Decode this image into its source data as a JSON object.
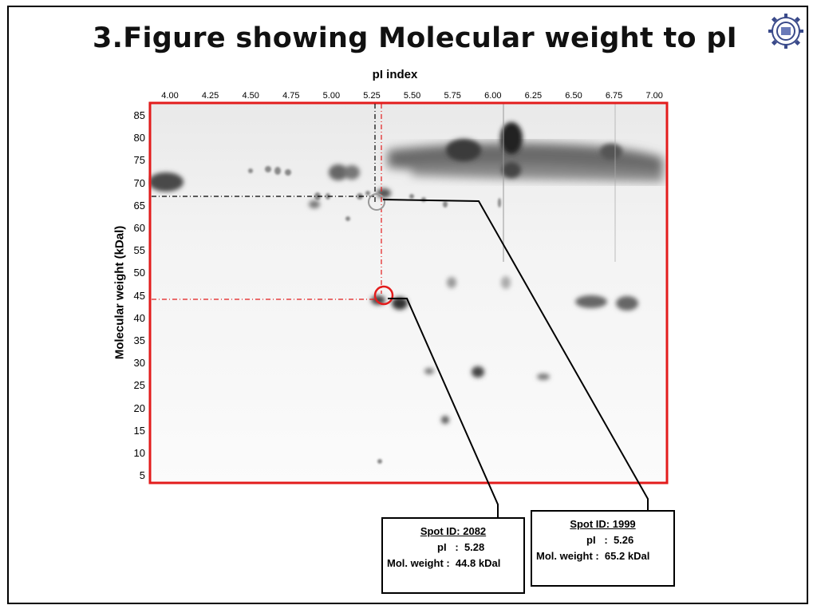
{
  "title": "3.Figure showing Molecular weight to pI",
  "x_axis": {
    "label": "pI index",
    "ticks": [
      "4.00",
      "4.25",
      "4.50",
      "4.75",
      "5.00",
      "5.25",
      "5.50",
      "5.75",
      "6.00",
      "6.25",
      "6.50",
      "6.75",
      "7.00"
    ]
  },
  "y_axis": {
    "label": "Molecular weight (kDal)",
    "ticks": [
      "85",
      "80",
      "75",
      "70",
      "65",
      "60",
      "55",
      "50",
      "45",
      "40",
      "35",
      "30",
      "25",
      "20",
      "15",
      "10",
      "5"
    ]
  },
  "highlighted_spots": [
    {
      "heading": "Spot ID: 2082",
      "pi_line": "pI   :  5.28",
      "mw_line": "Mol. weight :  44.8 kDal",
      "pi": 5.28,
      "mw": 44.8,
      "marker_color": "#e31c1c"
    },
    {
      "heading": "Spot ID: 1999",
      "pi_line": "pI   :  5.26",
      "mw_line": "Mol. weight :  65.2 kDal",
      "pi": 5.26,
      "mw": 65.2,
      "marker_color": "#999999"
    }
  ],
  "colors": {
    "gel_border": "#e31c1c",
    "guide_red": "#e31c1c",
    "guide_black": "#000000"
  }
}
